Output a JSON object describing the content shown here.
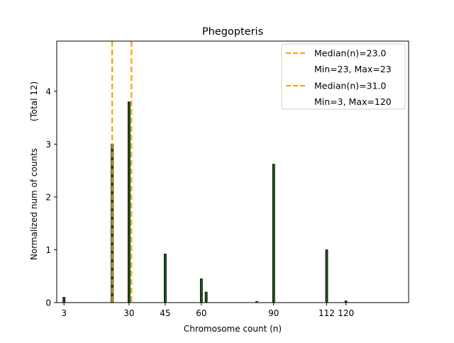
{
  "chart_data": {
    "type": "bar",
    "title": "Phegopteris",
    "xlabel": "Chromosome count (n)",
    "ylabel": "Normalized num of counts",
    "ylabel_secondary": "(Total 12)",
    "xlim": [
      0,
      146
    ],
    "ylim": [
      0,
      4.95
    ],
    "xticks": [
      3,
      30,
      45,
      60,
      90,
      112,
      120
    ],
    "yticks": [
      0,
      1,
      2,
      3,
      4
    ],
    "bar_color": "#1a5c1a",
    "bar_edge_color": "#000000",
    "median_color": "#f0a500",
    "x": [
      3,
      23,
      30,
      45,
      60,
      62,
      83,
      90,
      112,
      120
    ],
    "values": [
      0.1,
      3.0,
      3.8,
      0.92,
      0.45,
      0.2,
      0.02,
      2.62,
      1.0,
      0.03
    ],
    "medians": [
      {
        "x": 23,
        "label": "Median(n)=23.0",
        "range_label": "Min=23, Max=23"
      },
      {
        "x": 31,
        "label": "Median(n)=31.0",
        "range_label": "Min=3, Max=120"
      }
    ],
    "legend_position": "top-right"
  }
}
